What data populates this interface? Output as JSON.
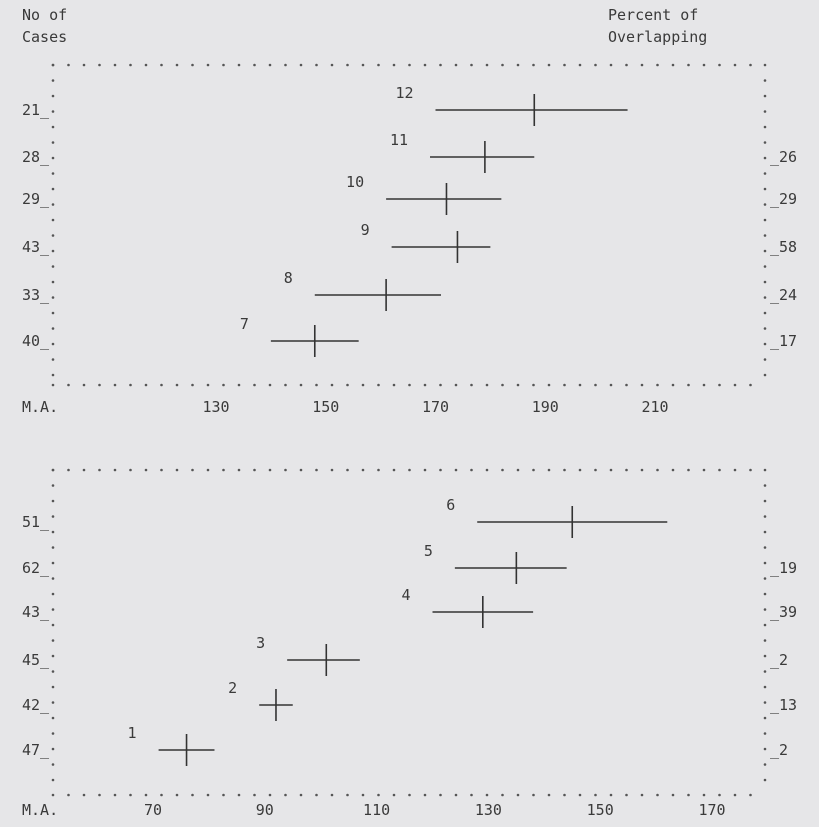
{
  "header": {
    "left_label_line1": "No of",
    "left_label_line2": "Cases",
    "right_label_line1": "Percent of",
    "right_label_line2": "Overlapping"
  },
  "chart_data": [
    {
      "type": "scatter",
      "xlabel": "M.A.",
      "xticks": [
        130,
        150,
        170,
        190,
        210
      ],
      "grades": [
        {
          "grade": "12",
          "cases": "21",
          "mean": 188,
          "low": 170,
          "high": 205,
          "overlap": ""
        },
        {
          "grade": "11",
          "cases": "28",
          "mean": 179,
          "low": 169,
          "high": 188,
          "overlap": "26"
        },
        {
          "grade": "10",
          "cases": "29",
          "mean": 172,
          "low": 161,
          "high": 182,
          "overlap": "29"
        },
        {
          "grade": "9",
          "cases": "43",
          "mean": 174,
          "low": 162,
          "high": 180,
          "overlap": "58"
        },
        {
          "grade": "8",
          "cases": "33",
          "mean": 161,
          "low": 148,
          "high": 171,
          "overlap": "24"
        },
        {
          "grade": "7",
          "cases": "40",
          "mean": 148,
          "low": 140,
          "high": 156,
          "overlap": "17"
        }
      ]
    },
    {
      "type": "scatter",
      "xlabel": "M.A.",
      "xticks": [
        70,
        90,
        110,
        130,
        150,
        170
      ],
      "grades": [
        {
          "grade": "6",
          "cases": "51",
          "mean": 145,
          "low": 128,
          "high": 162,
          "overlap": ""
        },
        {
          "grade": "5",
          "cases": "62",
          "mean": 135,
          "low": 124,
          "high": 144,
          "overlap": "19"
        },
        {
          "grade": "4",
          "cases": "43",
          "mean": 129,
          "low": 120,
          "high": 138,
          "overlap": "39"
        },
        {
          "grade": "3",
          "cases": "45",
          "mean": 101,
          "low": 94,
          "high": 107,
          "overlap": "2"
        },
        {
          "grade": "2",
          "cases": "42",
          "mean": 92,
          "low": 89,
          "high": 95,
          "overlap": "13"
        },
        {
          "grade": "1",
          "cases": "47",
          "mean": 76,
          "low": 71,
          "high": 81,
          "overlap": "2"
        }
      ]
    }
  ]
}
